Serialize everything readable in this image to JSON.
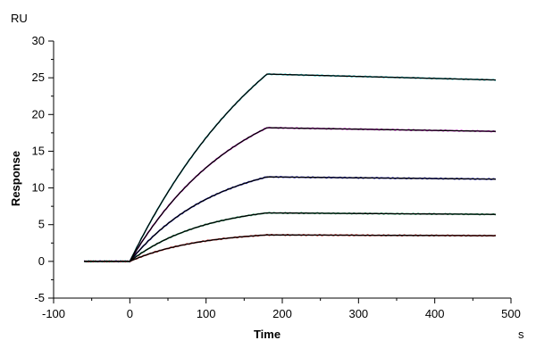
{
  "chart_data": {
    "type": "line",
    "title": "",
    "xlabel": "Time",
    "ylabel": "Response",
    "x_unit": "s",
    "y_unit": "RU",
    "xlim": [
      -100,
      500
    ],
    "ylim": [
      -5,
      30
    ],
    "x_ticks": [
      -100,
      0,
      100,
      200,
      300,
      400,
      500
    ],
    "y_ticks": [
      -5,
      0,
      5,
      10,
      15,
      20,
      25,
      30
    ],
    "grid": false,
    "legend": "none",
    "curve_model": {
      "baseline_start": -60,
      "injection_start": 0,
      "association_end": 180,
      "dissociation_end": 480
    },
    "series": [
      {
        "color": "#20c0c0",
        "fit_color": "#000000",
        "values": {
          "baseline": 0,
          "peak": 25.5,
          "end": 24.7
        }
      },
      {
        "color": "#d020d0",
        "fit_color": "#000000",
        "values": {
          "baseline": 0,
          "peak": 18.2,
          "end": 17.7
        }
      },
      {
        "color": "#2020c0",
        "fit_color": "#000000",
        "values": {
          "baseline": 0,
          "peak": 11.5,
          "end": 11.2
        }
      },
      {
        "color": "#20a060",
        "fit_color": "#000000",
        "values": {
          "baseline": 0,
          "peak": 6.6,
          "end": 6.4
        }
      },
      {
        "color": "#c02020",
        "fit_color": "#000000",
        "values": {
          "baseline": 0,
          "peak": 3.6,
          "end": 3.5
        }
      }
    ]
  }
}
